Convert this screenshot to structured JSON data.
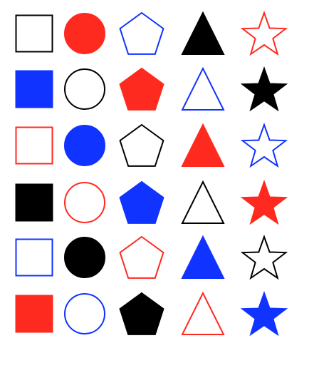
{
  "colors": {
    "black": "#000000",
    "red": "#ff2a1f",
    "blue": "#1033ff"
  },
  "grid": {
    "rows": [
      [
        {
          "shape": "square",
          "color": "black",
          "fill": false
        },
        {
          "shape": "circle",
          "color": "red",
          "fill": true
        },
        {
          "shape": "pentagon",
          "color": "blue",
          "fill": false
        },
        {
          "shape": "triangle",
          "color": "black",
          "fill": true
        },
        {
          "shape": "star",
          "color": "red",
          "fill": false
        }
      ],
      [
        {
          "shape": "square",
          "color": "blue",
          "fill": true
        },
        {
          "shape": "circle",
          "color": "black",
          "fill": false
        },
        {
          "shape": "pentagon",
          "color": "red",
          "fill": true
        },
        {
          "shape": "triangle",
          "color": "blue",
          "fill": false
        },
        {
          "shape": "star",
          "color": "black",
          "fill": true
        }
      ],
      [
        {
          "shape": "square",
          "color": "red",
          "fill": false
        },
        {
          "shape": "circle",
          "color": "blue",
          "fill": true
        },
        {
          "shape": "pentagon",
          "color": "black",
          "fill": false
        },
        {
          "shape": "triangle",
          "color": "red",
          "fill": true
        },
        {
          "shape": "star",
          "color": "blue",
          "fill": false
        }
      ],
      [
        {
          "shape": "square",
          "color": "black",
          "fill": true
        },
        {
          "shape": "circle",
          "color": "red",
          "fill": false
        },
        {
          "shape": "pentagon",
          "color": "blue",
          "fill": true
        },
        {
          "shape": "triangle",
          "color": "black",
          "fill": false
        },
        {
          "shape": "star",
          "color": "red",
          "fill": true
        }
      ],
      [
        {
          "shape": "square",
          "color": "blue",
          "fill": false
        },
        {
          "shape": "circle",
          "color": "black",
          "fill": true
        },
        {
          "shape": "pentagon",
          "color": "red",
          "fill": false
        },
        {
          "shape": "triangle",
          "color": "blue",
          "fill": true
        },
        {
          "shape": "star",
          "color": "black",
          "fill": false
        }
      ],
      [
        {
          "shape": "square",
          "color": "red",
          "fill": true
        },
        {
          "shape": "circle",
          "color": "blue",
          "fill": false
        },
        {
          "shape": "pentagon",
          "color": "black",
          "fill": true
        },
        {
          "shape": "triangle",
          "color": "red",
          "fill": false
        },
        {
          "shape": "star",
          "color": "blue",
          "fill": true
        }
      ]
    ]
  }
}
